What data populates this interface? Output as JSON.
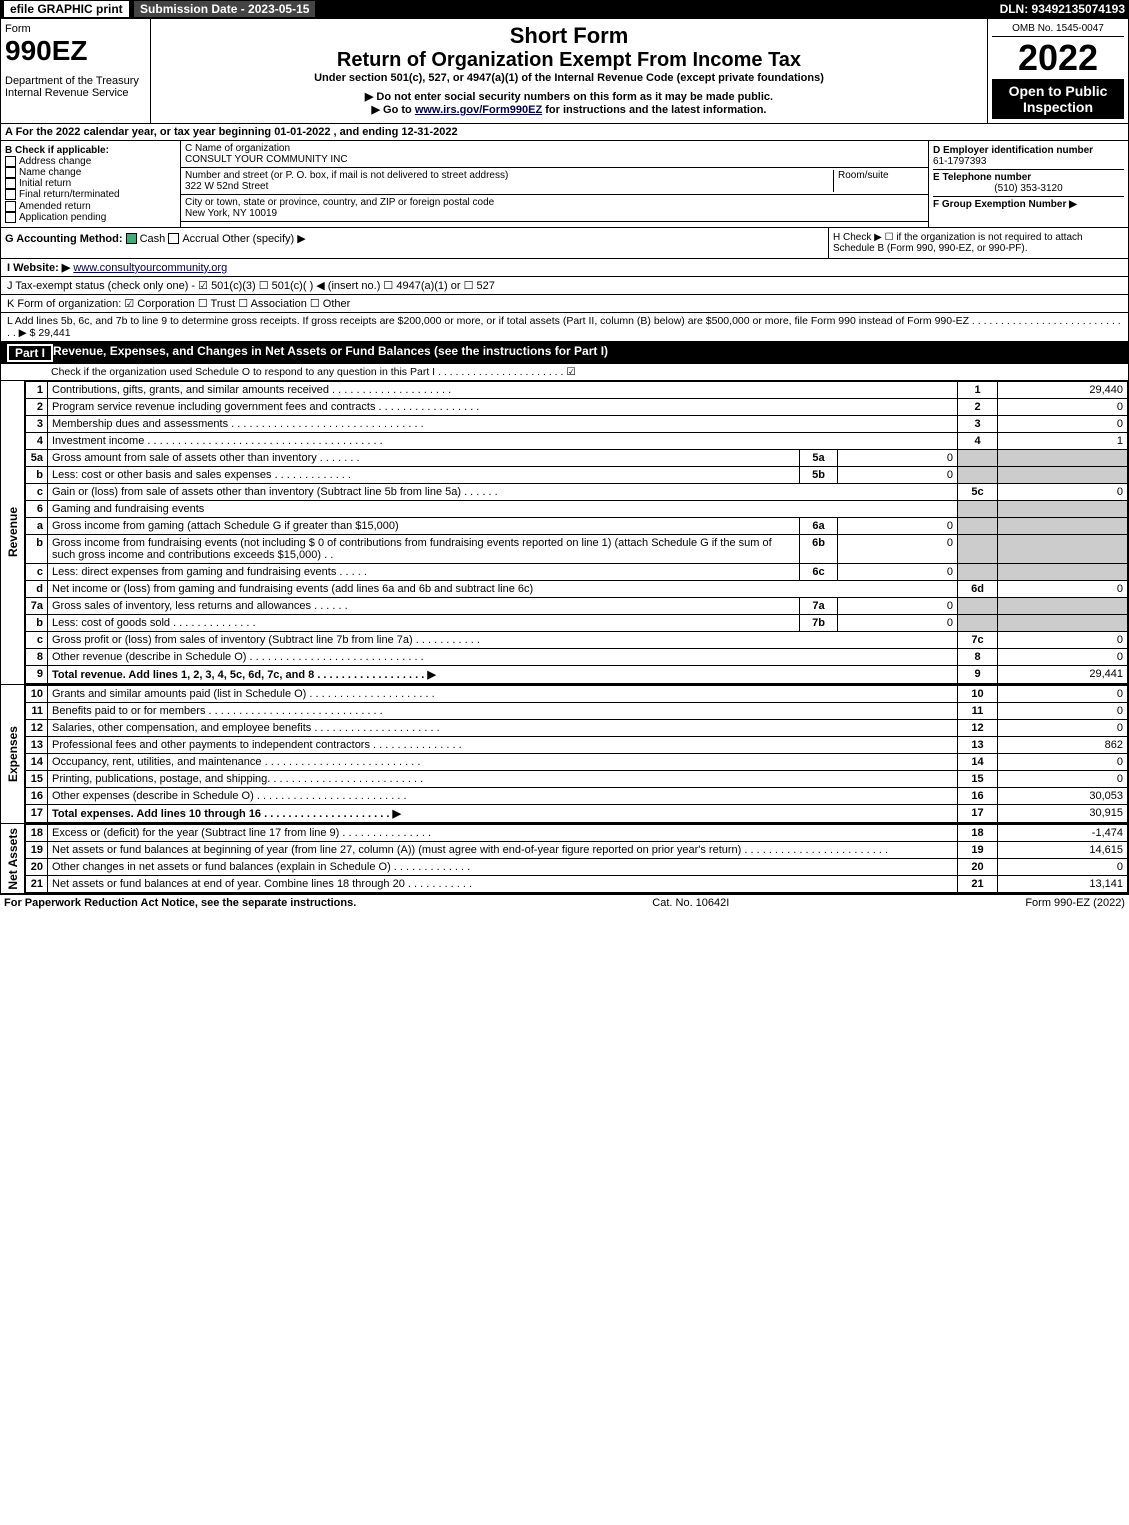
{
  "topbar": {
    "efile": "efile GRAPHIC print",
    "subdate_label": "Submission Date - 2023-05-15",
    "dln": "DLN: 93492135074193"
  },
  "header": {
    "form_word": "Form",
    "form_no": "990EZ",
    "dept": "Department of the Treasury",
    "irs": "Internal Revenue Service",
    "title1": "Short Form",
    "title2": "Return of Organization Exempt From Income Tax",
    "sub1": "Under section 501(c), 527, or 4947(a)(1) of the Internal Revenue Code (except private foundations)",
    "sub2": "▶ Do not enter social security numbers on this form as it may be made public.",
    "sub3_pre": "▶ Go to ",
    "sub3_link": "www.irs.gov/Form990EZ",
    "sub3_post": " for instructions and the latest information.",
    "omb": "OMB No. 1545-0047",
    "year": "2022",
    "open": "Open to Public Inspection"
  },
  "A": "A  For the 2022 calendar year, or tax year beginning 01-01-2022 , and ending 12-31-2022",
  "B": {
    "hdr": "B  Check if applicable:",
    "opts": [
      "Address change",
      "Name change",
      "Initial return",
      "Final return/terminated",
      "Amended return",
      "Application pending"
    ]
  },
  "C": {
    "name_lbl": "C Name of organization",
    "name": "CONSULT YOUR COMMUNITY INC",
    "addr_lbl": "Number and street (or P. O. box, if mail is not delivered to street address)",
    "room_lbl": "Room/suite",
    "addr": "322 W 52nd Street",
    "city_lbl": "City or town, state or province, country, and ZIP or foreign postal code",
    "city": "New York, NY  10019"
  },
  "D": {
    "lbl": "D Employer identification number",
    "val": "61-1797393"
  },
  "E": {
    "lbl": "E Telephone number",
    "val": "(510) 353-3120"
  },
  "F": {
    "lbl": "F Group Exemption Number  ▶",
    "val": ""
  },
  "G": "G Accounting Method:",
  "G_opts": [
    "Cash",
    "Accrual",
    "Other (specify) ▶"
  ],
  "H": "H  Check ▶  ☐  if the organization is not required to attach Schedule B (Form 990, 990-EZ, or 990-PF).",
  "I_lbl": "I Website: ▶",
  "I_val": "www.consultyourcommunity.org",
  "J": "J Tax-exempt status (check only one) - ☑ 501(c)(3)  ☐ 501(c)(  ) ◀ (insert no.)  ☐ 4947(a)(1) or  ☐ 527",
  "K": "K Form of organization:  ☑ Corporation  ☐ Trust  ☐ Association  ☐ Other",
  "L": "L Add lines 5b, 6c, and 7b to line 9 to determine gross receipts. If gross receipts are $200,000 or more, or if total assets (Part II, column (B) below) are $500,000 or more, file Form 990 instead of Form 990-EZ . . . . . . . . . . . . . . . . . . . . . . . . . . . . ▶ $ 29,441",
  "part1": {
    "num": "Part I",
    "title": "Revenue, Expenses, and Changes in Net Assets or Fund Balances (see the instructions for Part I)",
    "check": "Check if the organization used Schedule O to respond to any question in this Part I . . . . . . . . . . . . . . . . . . . . . .  ☑"
  },
  "vlabels": {
    "rev": "Revenue",
    "exp": "Expenses",
    "na": "Net Assets"
  },
  "rows": [
    {
      "n": "1",
      "d": "Contributions, gifts, grants, and similar amounts received . . . . . . . . . . . . . . . . . . . .",
      "nb": "1",
      "a": "29,440"
    },
    {
      "n": "2",
      "d": "Program service revenue including government fees and contracts . . . . . . . . . . . . . . . . .",
      "nb": "2",
      "a": "0"
    },
    {
      "n": "3",
      "d": "Membership dues and assessments . . . . . . . . . . . . . . . . . . . . . . . . . . . . . . . .",
      "nb": "3",
      "a": "0"
    },
    {
      "n": "4",
      "d": "Investment income . . . . . . . . . . . . . . . . . . . . . . . . . . . . . . . . . . . . . . .",
      "nb": "4",
      "a": "1"
    },
    {
      "n": "5a",
      "d": "Gross amount from sale of assets other than inventory . . . . . . .",
      "sv": "5a",
      "sva": "0"
    },
    {
      "n": "b",
      "d": "Less: cost or other basis and sales expenses . . . . . . . . . . . . .",
      "sv": "5b",
      "sva": "0"
    },
    {
      "n": "c",
      "d": "Gain or (loss) from sale of assets other than inventory (Subtract line 5b from line 5a) . . . . . .",
      "nb": "5c",
      "a": "0"
    },
    {
      "n": "6",
      "d": "Gaming and fundraising events"
    },
    {
      "n": "a",
      "d": "Gross income from gaming (attach Schedule G if greater than $15,000)",
      "sv": "6a",
      "sva": "0"
    },
    {
      "n": "b",
      "d": "Gross income from fundraising events (not including $ 0          of contributions from fundraising events reported on line 1) (attach Schedule G if the sum of such gross income and contributions exceeds $15,000)   . .",
      "sv": "6b",
      "sva": "0"
    },
    {
      "n": "c",
      "d": "Less: direct expenses from gaming and fundraising events  . . . . .",
      "sv": "6c",
      "sva": "0"
    },
    {
      "n": "d",
      "d": "Net income or (loss) from gaming and fundraising events (add lines 6a and 6b and subtract line 6c)",
      "nb": "6d",
      "a": "0"
    },
    {
      "n": "7a",
      "d": "Gross sales of inventory, less returns and allowances . . . . . .",
      "sv": "7a",
      "sva": "0"
    },
    {
      "n": "b",
      "d": "Less: cost of goods sold         . . . . . . . . . . . . . .",
      "sv": "7b",
      "sva": "0"
    },
    {
      "n": "c",
      "d": "Gross profit or (loss) from sales of inventory (Subtract line 7b from line 7a) . . . . . . . . . . .",
      "nb": "7c",
      "a": "0"
    },
    {
      "n": "8",
      "d": "Other revenue (describe in Schedule O) . . . . . . . . . . . . . . . . . . . . . . . . . . . . .",
      "nb": "8",
      "a": "0"
    },
    {
      "n": "9",
      "d": "Total revenue. Add lines 1, 2, 3, 4, 5c, 6d, 7c, and 8  . . . . . . . . . . . . . . . . . .  ▶",
      "nb": "9",
      "a": "29,441",
      "bold": true
    }
  ],
  "exp_rows": [
    {
      "n": "10",
      "d": "Grants and similar amounts paid (list in Schedule O) . . . . . . . . . . . . . . . . . . . . .",
      "nb": "10",
      "a": "0"
    },
    {
      "n": "11",
      "d": "Benefits paid to or for members      . . . . . . . . . . . . . . . . . . . . . . . . . . . . .",
      "nb": "11",
      "a": "0"
    },
    {
      "n": "12",
      "d": "Salaries, other compensation, and employee benefits . . . . . . . . . . . . . . . . . . . . .",
      "nb": "12",
      "a": "0"
    },
    {
      "n": "13",
      "d": "Professional fees and other payments to independent contractors . . . . . . . . . . . . . . .",
      "nb": "13",
      "a": "862"
    },
    {
      "n": "14",
      "d": "Occupancy, rent, utilities, and maintenance . . . . . . . . . . . . . . . . . . . . . . . . . .",
      "nb": "14",
      "a": "0"
    },
    {
      "n": "15",
      "d": "Printing, publications, postage, and shipping. . . . . . . . . . . . . . . . . . . . . . . . . .",
      "nb": "15",
      "a": "0"
    },
    {
      "n": "16",
      "d": "Other expenses (describe in Schedule O)     . . . . . . . . . . . . . . . . . . . . . . . . .",
      "nb": "16",
      "a": "30,053"
    },
    {
      "n": "17",
      "d": "Total expenses. Add lines 10 through 16    . . . . . . . . . . . . . . . . . . . . .  ▶",
      "nb": "17",
      "a": "30,915",
      "bold": true
    }
  ],
  "na_rows": [
    {
      "n": "18",
      "d": "Excess or (deficit) for the year (Subtract line 17 from line 9)      . . . . . . . . . . . . . . .",
      "nb": "18",
      "a": "-1,474"
    },
    {
      "n": "19",
      "d": "Net assets or fund balances at beginning of year (from line 27, column (A)) (must agree with end-of-year figure reported on prior year's return) . . . . . . . . . . . . . . . . . . . . . . . .",
      "nb": "19",
      "a": "14,615"
    },
    {
      "n": "20",
      "d": "Other changes in net assets or fund balances (explain in Schedule O) . . . . . . . . . . . . .",
      "nb": "20",
      "a": "0"
    },
    {
      "n": "21",
      "d": "Net assets or fund balances at end of year. Combine lines 18 through 20 . . . . . . . . . . .",
      "nb": "21",
      "a": "13,141"
    }
  ],
  "footer": {
    "left": "For Paperwork Reduction Act Notice, see the separate instructions.",
    "mid": "Cat. No. 10642I",
    "right": "Form 990-EZ (2022)"
  }
}
